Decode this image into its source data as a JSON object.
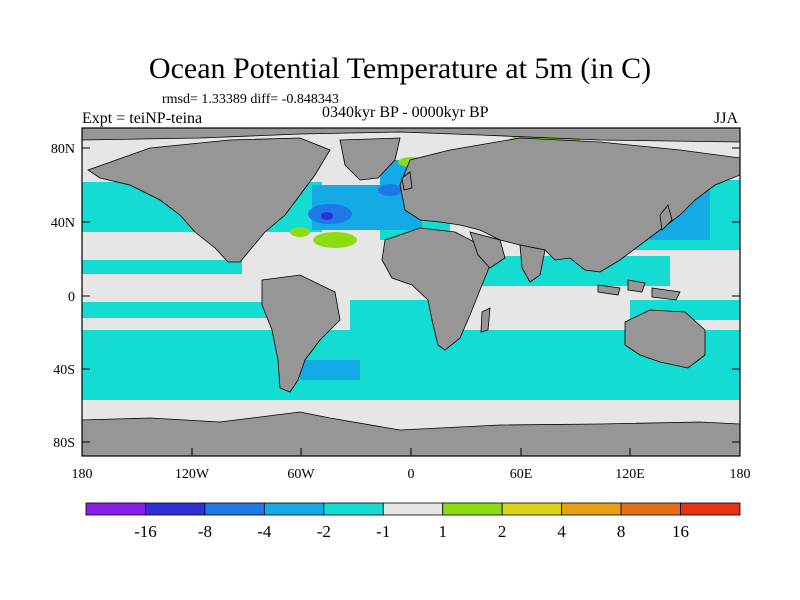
{
  "title": "Ocean Potential Temperature at 5m (in C)",
  "stats": "rmsd= 1.33389 diff= -0.848343",
  "experiment": "Expt = teiNP-teina",
  "period": "0340kyr BP - 0000kyr BP",
  "season": "JJA",
  "lat_labels": [
    "80N",
    "40N",
    "0",
    "40S",
    "80S"
  ],
  "lon_labels": [
    "180",
    "120W",
    "60W",
    "0",
    "60E",
    "120E",
    "180"
  ],
  "colorbar": {
    "labels": [
      "-16",
      "-8",
      "-4",
      "-2",
      "-1",
      "1",
      "2",
      "4",
      "8",
      "16"
    ],
    "colors": [
      "#8b1ee6",
      "#3030d8",
      "#1e78e6",
      "#14aae6",
      "#14dcd2",
      "#e6e6e6",
      "#8cdc14",
      "#dcd214",
      "#e6a014",
      "#e66e14",
      "#e63214"
    ]
  },
  "colors": {
    "land": "#969696",
    "no_change": "#e6e6e6",
    "cool_moderate": "#14aae6",
    "cool_weak": "#14dcd2",
    "cool_strong": "#1e78e6",
    "cool_strongest": "#3030d8",
    "warm_weak": "#8cdc14",
    "warm_moderate": "#dcd214"
  }
}
